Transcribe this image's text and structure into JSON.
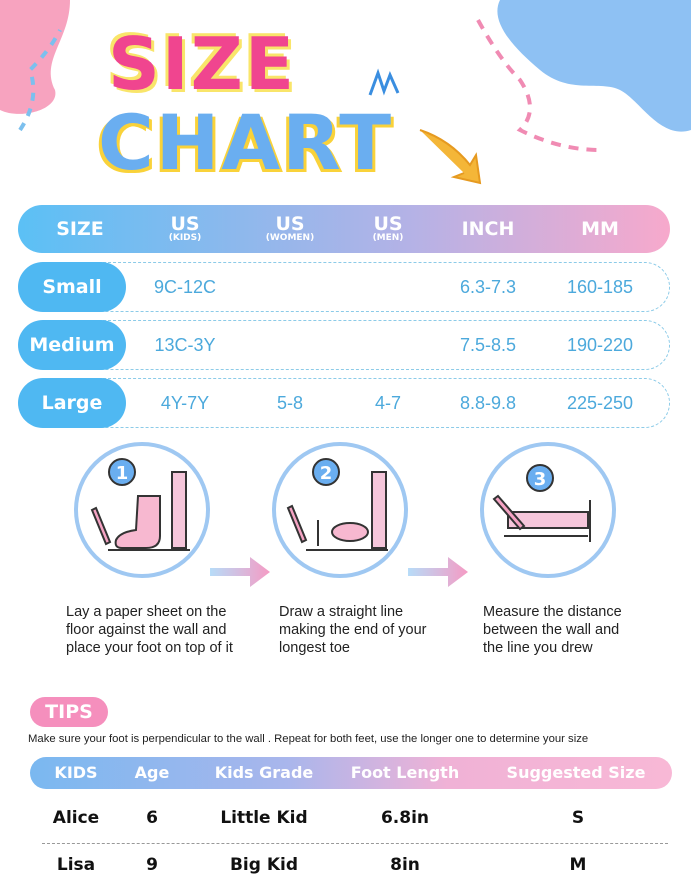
{
  "title": {
    "line1": "SIZE",
    "line2": "CHART"
  },
  "colors": {
    "blue": "#4fb8f2",
    "pink": "#f58fbd",
    "text_blue": "#4ca9dc"
  },
  "size_table": {
    "headers": [
      {
        "main": "SIZE",
        "sub": ""
      },
      {
        "main": "US",
        "sub": "(KIDS)"
      },
      {
        "main": "US",
        "sub": "(WOMEN)"
      },
      {
        "main": "US",
        "sub": "(MEN)"
      },
      {
        "main": "INCH",
        "sub": ""
      },
      {
        "main": "MM",
        "sub": ""
      }
    ],
    "rows": [
      {
        "size": "Small",
        "us_kids": "9C-12C",
        "us_women": "",
        "us_men": "",
        "inch": "6.3-7.3",
        "mm": "160-185"
      },
      {
        "size": "Medium",
        "us_kids": "13C-3Y",
        "us_women": "",
        "us_men": "",
        "inch": "7.5-8.5",
        "mm": "190-220"
      },
      {
        "size": "Large",
        "us_kids": "4Y-7Y",
        "us_women": "5-8",
        "us_men": "4-7",
        "inch": "8.8-9.8",
        "mm": "225-250"
      }
    ]
  },
  "steps": [
    {
      "number": "1",
      "icon": "foot-against-wall-icon",
      "text": "Lay a paper sheet on the floor against the wall and place your foot on top of it"
    },
    {
      "number": "2",
      "icon": "footprint-line-icon",
      "text": "Draw a straight line making the end of your longest toe"
    },
    {
      "number": "3",
      "icon": "ruler-measure-icon",
      "text": "Measure the distance between the wall and the line you drew"
    }
  ],
  "tips": {
    "label": "TIPS",
    "text": "Make sure your foot is perpendicular to the wall . Repeat for both feet, use the longer one to determine your size"
  },
  "kids_table": {
    "headers": [
      "KIDS",
      "Age",
      "Kids Grade",
      "Foot Length",
      "Suggested Size"
    ],
    "rows": [
      [
        "Alice",
        "6",
        "Little Kid",
        "6.8in",
        "S"
      ],
      [
        "Lisa",
        "9",
        "Big Kid",
        "8in",
        "M"
      ]
    ]
  }
}
